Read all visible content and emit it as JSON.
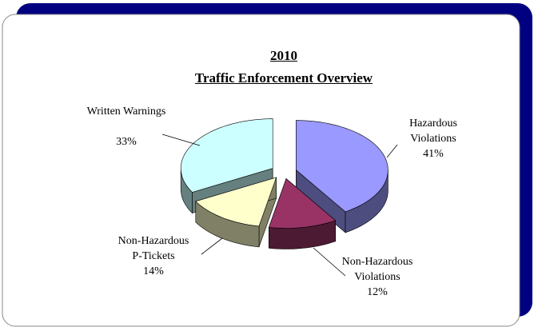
{
  "chart_data": {
    "type": "pie3d",
    "title": "2010",
    "subtitle": "Traffic Enforcement Overview",
    "categories": [
      "Hazardous Violations",
      "Non-Hazardous Violations",
      "Non-Hazardous P-Tickets",
      "Written Warnings"
    ],
    "values": [
      41,
      12,
      14,
      33
    ],
    "value_labels": [
      "41%",
      "12%",
      "14%",
      "33%"
    ],
    "colors": [
      "#9999ff",
      "#993366",
      "#ffffcc",
      "#ccffff"
    ]
  }
}
